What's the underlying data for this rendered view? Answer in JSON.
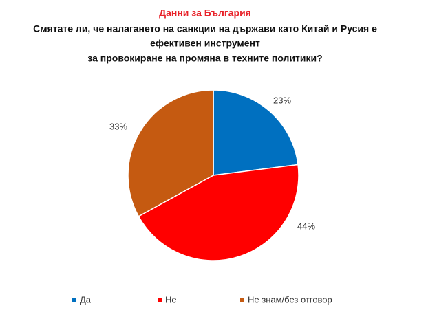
{
  "chart_data": {
    "type": "pie",
    "title": "Данни за България",
    "subtitle": [
      "Смятате ли, че налагането на санкции на държави като Китай и Русия е",
      "ефективен инструмент",
      "за провокиране на промяна в техните политики?"
    ],
    "categories": [
      "Да",
      "Не",
      "Не знам/без отговор"
    ],
    "values": [
      23,
      44,
      33
    ],
    "value_labels": [
      "23%",
      "44%",
      "33%"
    ],
    "colors": [
      "#0070c0",
      "#ff0000",
      "#c55a11"
    ],
    "legend": "bottom"
  }
}
